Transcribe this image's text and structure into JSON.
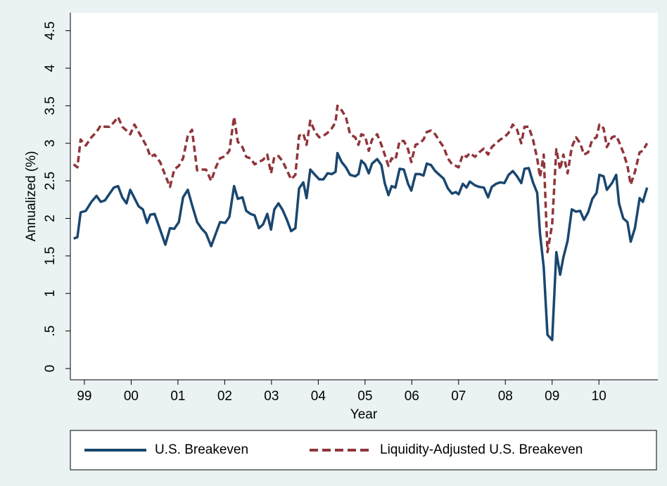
{
  "chart_data": {
    "type": "line",
    "y_label": "Annualized (%)",
    "x_label": "Year",
    "x": [
      1998.77,
      1998.85,
      1998.92,
      1999.03,
      1999.15,
      1999.26,
      1999.35,
      1999.44,
      1999.54,
      1999.63,
      1999.72,
      1999.81,
      1999.9,
      1999.98,
      2000.07,
      2000.16,
      2000.25,
      2000.34,
      2000.41,
      2000.5,
      2000.62,
      2000.73,
      2000.83,
      2000.92,
      2001.02,
      2001.11,
      2001.21,
      2001.3,
      2001.41,
      2001.5,
      2001.6,
      2001.71,
      2001.81,
      2001.9,
      2002.01,
      2002.1,
      2002.2,
      2002.28,
      2002.38,
      2002.46,
      2002.55,
      2002.64,
      2002.73,
      2002.82,
      2002.91,
      2002.99,
      2003.06,
      2003.15,
      2003.24,
      2003.33,
      2003.42,
      2003.51,
      2003.59,
      2003.68,
      2003.75,
      2003.83,
      2003.93,
      2004.02,
      2004.11,
      2004.2,
      2004.29,
      2004.37,
      2004.41,
      2004.5,
      2004.59,
      2004.68,
      2004.79,
      2004.86,
      2004.92,
      2005.0,
      2005.08,
      2005.15,
      2005.26,
      2005.35,
      2005.42,
      2005.5,
      2005.57,
      2005.65,
      2005.74,
      2005.83,
      2005.92,
      2005.99,
      2006.08,
      2006.17,
      2006.25,
      2006.32,
      2006.41,
      2006.5,
      2006.59,
      2006.68,
      2006.77,
      2006.86,
      2006.94,
      2007.0,
      2007.09,
      2007.17,
      2007.24,
      2007.35,
      2007.44,
      2007.54,
      2007.63,
      2007.71,
      2007.8,
      2007.89,
      2007.98,
      2008.07,
      2008.16,
      2008.25,
      2008.34,
      2008.41,
      2008.5,
      2008.59,
      2008.68,
      2008.74,
      2008.82,
      2008.9,
      2009.0,
      2009.09,
      2009.17,
      2009.24,
      2009.33,
      2009.42,
      2009.51,
      2009.6,
      2009.68,
      2009.77,
      2009.86,
      2009.95,
      2010.01,
      2010.1,
      2010.17,
      2010.28,
      2010.37,
      2010.43,
      2010.52,
      2010.61,
      2010.68,
      2010.77,
      2010.87,
      2010.94,
      2011.03
    ],
    "series": [
      {
        "name": "U.S. Breakeven",
        "color": "#1a476f",
        "dash": false,
        "values": [
          1.73,
          1.75,
          2.08,
          2.1,
          2.22,
          2.3,
          2.22,
          2.24,
          2.33,
          2.41,
          2.43,
          2.28,
          2.2,
          2.38,
          2.27,
          2.16,
          2.12,
          1.94,
          2.05,
          2.06,
          1.85,
          1.65,
          1.87,
          1.86,
          1.95,
          2.28,
          2.38,
          2.18,
          1.95,
          1.87,
          1.8,
          1.63,
          1.8,
          1.95,
          1.94,
          2.02,
          2.43,
          2.26,
          2.28,
          2.1,
          2.06,
          2.04,
          1.87,
          1.92,
          2.06,
          1.85,
          2.12,
          2.2,
          2.11,
          1.98,
          1.83,
          1.87,
          2.4,
          2.48,
          2.27,
          2.65,
          2.58,
          2.52,
          2.52,
          2.6,
          2.59,
          2.62,
          2.87,
          2.75,
          2.68,
          2.58,
          2.56,
          2.59,
          2.77,
          2.72,
          2.6,
          2.73,
          2.79,
          2.71,
          2.47,
          2.31,
          2.43,
          2.41,
          2.66,
          2.65,
          2.46,
          2.37,
          2.59,
          2.59,
          2.57,
          2.73,
          2.71,
          2.63,
          2.58,
          2.53,
          2.4,
          2.33,
          2.35,
          2.32,
          2.46,
          2.41,
          2.49,
          2.44,
          2.42,
          2.41,
          2.28,
          2.42,
          2.46,
          2.48,
          2.47,
          2.58,
          2.63,
          2.56,
          2.47,
          2.66,
          2.67,
          2.48,
          2.34,
          1.8,
          1.35,
          0.45,
          0.38,
          1.55,
          1.25,
          1.48,
          1.7,
          2.12,
          2.09,
          2.1,
          1.98,
          2.08,
          2.26,
          2.34,
          2.58,
          2.56,
          2.38,
          2.47,
          2.58,
          2.2,
          2.0,
          1.95,
          1.69,
          1.87,
          2.27,
          2.22,
          2.41
        ]
      },
      {
        "name": "Liquidity-Adjusted U.S. Breakeven",
        "color": "#90353b",
        "dash": true,
        "values": [
          2.72,
          2.68,
          3.05,
          2.97,
          3.08,
          3.15,
          3.24,
          3.22,
          3.22,
          3.28,
          3.35,
          3.22,
          3.17,
          3.12,
          3.25,
          3.15,
          3.05,
          2.95,
          2.82,
          2.85,
          2.75,
          2.57,
          2.42,
          2.65,
          2.7,
          2.8,
          3.1,
          3.18,
          2.64,
          2.65,
          2.65,
          2.5,
          2.68,
          2.8,
          2.83,
          2.9,
          3.35,
          3.02,
          2.95,
          2.82,
          2.8,
          2.72,
          2.75,
          2.78,
          2.85,
          2.6,
          2.82,
          2.83,
          2.76,
          2.64,
          2.52,
          2.58,
          3.1,
          3.13,
          2.98,
          3.3,
          3.15,
          3.08,
          3.1,
          3.14,
          3.2,
          3.28,
          3.5,
          3.44,
          3.35,
          3.12,
          3.08,
          2.98,
          3.12,
          3.1,
          2.9,
          3.05,
          3.12,
          2.98,
          2.85,
          2.7,
          2.8,
          2.78,
          3.03,
          3.03,
          2.92,
          2.75,
          2.98,
          3.0,
          3.05,
          3.15,
          3.17,
          3.12,
          3.03,
          2.95,
          2.8,
          2.72,
          2.7,
          2.68,
          2.85,
          2.82,
          2.87,
          2.82,
          2.88,
          2.93,
          2.85,
          2.95,
          3.0,
          3.05,
          3.08,
          3.14,
          3.25,
          3.18,
          3.0,
          3.22,
          3.22,
          3.05,
          2.8,
          2.55,
          2.85,
          1.55,
          1.92,
          2.92,
          2.65,
          2.85,
          2.6,
          2.95,
          3.08,
          3.0,
          2.85,
          2.88,
          3.05,
          3.08,
          3.25,
          3.2,
          2.95,
          3.08,
          3.1,
          3.02,
          2.88,
          2.7,
          2.45,
          2.62,
          2.88,
          2.9,
          3.0
        ]
      }
    ],
    "xlim": [
      1998.7,
      2011.26
    ],
    "xticks": [
      {
        "value": 1999,
        "label": "99"
      },
      {
        "value": 2000,
        "label": "00"
      },
      {
        "value": 2001,
        "label": "01"
      },
      {
        "value": 2002,
        "label": "02"
      },
      {
        "value": 2003,
        "label": "03"
      },
      {
        "value": 2004,
        "label": "04"
      },
      {
        "value": 2005,
        "label": "05"
      },
      {
        "value": 2006,
        "label": "06"
      },
      {
        "value": 2007,
        "label": "07"
      },
      {
        "value": 2008,
        "label": "08"
      },
      {
        "value": 2009,
        "label": "09"
      },
      {
        "value": 2010,
        "label": "10"
      }
    ],
    "ylim": [
      -0.15,
      4.74
    ],
    "yticks": [
      0,
      {
        "value": 0.5,
        "label": ".5"
      },
      1,
      1.5,
      2,
      2.5,
      3,
      3.5,
      4,
      4.5
    ],
    "grid": false,
    "legend": "bottom"
  }
}
